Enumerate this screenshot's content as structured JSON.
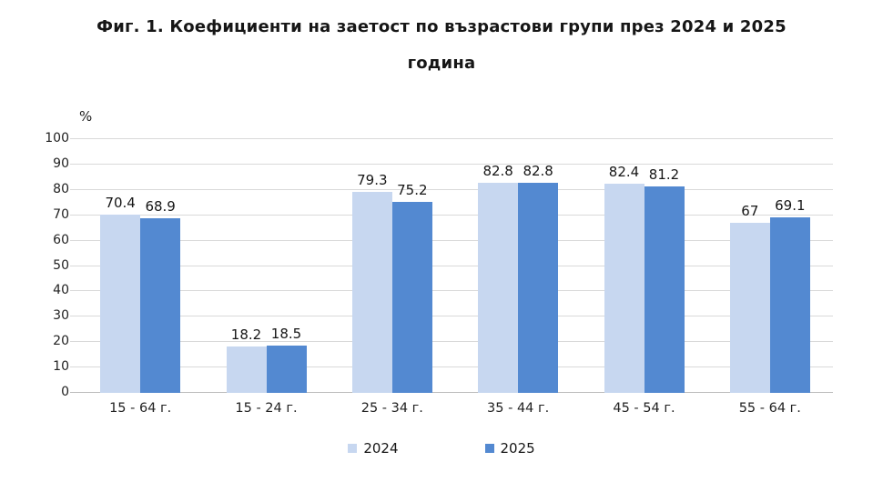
{
  "chart_data": {
    "type": "bar",
    "title": "Фиг. 1. Коефициенти на заетост по възрастови групи през 2024 и 2025 година",
    "title_lines": [
      "Фиг. 1. Коефициенти на заетост по възрастови групи през 2024 и 2025",
      "година"
    ],
    "ylabel": "%",
    "ylim": [
      0,
      100
    ],
    "yticks": [
      0,
      10,
      20,
      30,
      40,
      50,
      60,
      70,
      80,
      90,
      100
    ],
    "grid": true,
    "gridline_color": "#d9d9d9",
    "categories": [
      "15 - 64 г.",
      "15 - 24 г.",
      "25 - 34 г.",
      "35 - 44 г.",
      "45 - 54 г.",
      "55 - 64 г."
    ],
    "series": [
      {
        "name": "2024",
        "color": "#c7d7f0",
        "values": [
          70.4,
          18.2,
          79.3,
          82.8,
          82.4,
          67
        ]
      },
      {
        "name": "2025",
        "color": "#5389d1",
        "values": [
          68.9,
          18.5,
          75.2,
          82.8,
          81.2,
          69.1
        ]
      }
    ],
    "legend_position": "bottom",
    "colors": {
      "text": "#161616",
      "axis_text": "#222222"
    }
  }
}
